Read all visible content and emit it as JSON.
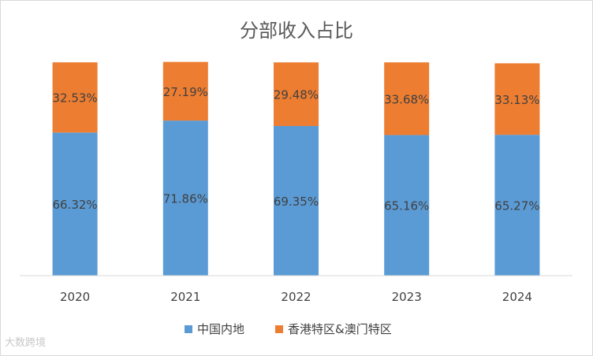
{
  "chart_data": {
    "type": "bar",
    "stacked": true,
    "title": "分部收入占比",
    "categories": [
      "2020",
      "2021",
      "2022",
      "2023",
      "2024"
    ],
    "series": [
      {
        "name": "中国内地",
        "color": "#5b9bd5",
        "values": [
          66.32,
          71.86,
          69.35,
          65.16,
          65.27
        ],
        "labels": [
          "66.32%",
          "71.86%",
          "69.35%",
          "65.16%",
          "65.27%"
        ]
      },
      {
        "name": "香港特区&澳门特区",
        "color": "#ed7d31",
        "values": [
          32.53,
          27.19,
          29.48,
          33.68,
          33.13
        ],
        "labels": [
          "32.53%",
          "27.19%",
          "29.48%",
          "33.68%",
          "33.13%"
        ]
      }
    ],
    "ylim": [
      0,
      100
    ],
    "legend": "bottom",
    "grid": false
  },
  "watermark": "大数跨境"
}
